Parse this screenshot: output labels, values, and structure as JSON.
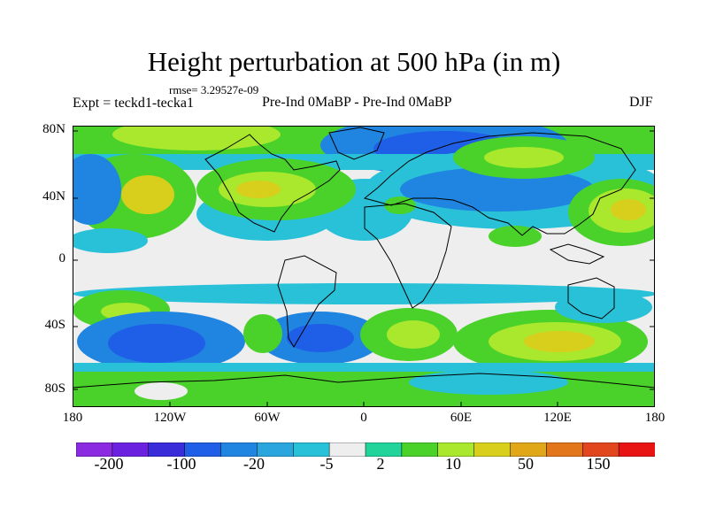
{
  "title": "Height perturbation at 500 hPa (in m)",
  "rmse_label": "rmse= 3.29527e-09",
  "left_label": "Expt = teckd1-tecka1",
  "center_label": "Pre-Ind 0MaBP - Pre-Ind 0MaBP",
  "right_label": "DJF",
  "lat_ticks": [
    "80N",
    "40N",
    "0",
    "40S",
    "80S"
  ],
  "lon_ticks": [
    "180",
    "120W",
    "60W",
    "0",
    "60E",
    "120E",
    "180"
  ],
  "colorbar": {
    "labels": [
      "-200",
      "-100",
      "-20",
      "-5",
      "2",
      "10",
      "50",
      "150"
    ],
    "colors": [
      "#8a2be2",
      "#6a22e0",
      "#3a2cd9",
      "#1f5ee6",
      "#1f85e0",
      "#2aa5dd",
      "#29c1d8",
      "#eeeeee",
      "#22d49a",
      "#4ad22a",
      "#a9e82c",
      "#d7cf1c",
      "#e0a818",
      "#e2761a",
      "#e2461c",
      "#e81414"
    ]
  },
  "colors": {
    "strong_neg": "#1f5ee6",
    "neg": "#1f85e0",
    "weak_neg": "#29c1d8",
    "zero": "#eeeeee",
    "weak_pos": "#22d49a",
    "pos": "#4ad22a",
    "more_pos": "#a9e82c",
    "strong_pos": "#d7cf1c"
  }
}
